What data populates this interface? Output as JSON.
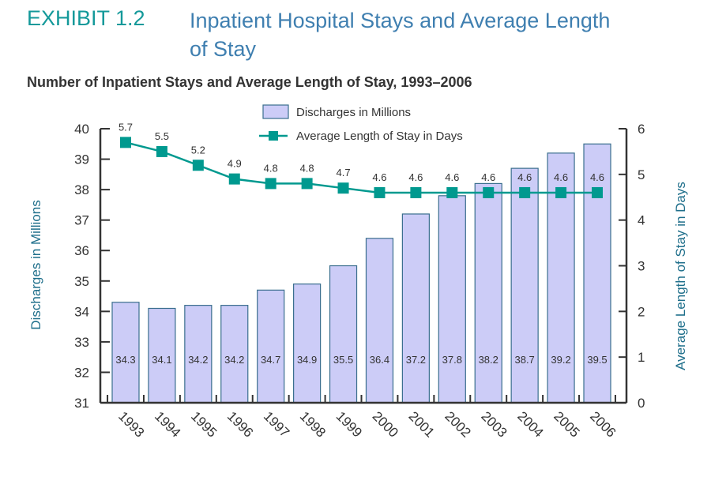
{
  "header": {
    "exhibit": "EXHIBIT 1.2",
    "title": "Inpatient Hospital Stays and Average Length of Stay"
  },
  "chart_data": {
    "type": "bar+line",
    "title": "Number of Inpatient Stays and Average Length of Stay, 1993–2006",
    "categories": [
      "1993",
      "1994",
      "1995",
      "1996",
      "1997",
      "1998",
      "1999",
      "2000",
      "2001",
      "2002",
      "2003",
      "2004",
      "2005",
      "2006"
    ],
    "series": [
      {
        "name": "Discharges in Millions",
        "type": "bar",
        "axis": "left",
        "values": [
          34.3,
          34.1,
          34.2,
          34.2,
          34.7,
          34.9,
          35.5,
          36.4,
          37.2,
          37.8,
          38.2,
          38.7,
          39.2,
          39.5
        ],
        "labels": [
          "34.3",
          "34.1",
          "34.2",
          "34.2",
          "34.7",
          "34.9",
          "35.5",
          "36.4",
          "37.2",
          "37.8",
          "38.2",
          "38.7",
          "39.2",
          "39.5"
        ]
      },
      {
        "name": "Average Length of Stay in Days",
        "type": "line",
        "axis": "right",
        "values": [
          5.7,
          5.5,
          5.2,
          4.9,
          4.8,
          4.8,
          4.7,
          4.6,
          4.6,
          4.6,
          4.6,
          4.6,
          4.6,
          4.6
        ],
        "labels": [
          "5.7",
          "5.5",
          "5.2",
          "4.9",
          "4.8",
          "4.8",
          "4.7",
          "4.6",
          "4.6",
          "4.6",
          "4.6",
          "4.6",
          "4.6",
          "4.6"
        ]
      }
    ],
    "ylabel_left": "Discharges in Millions",
    "ylabel_right": "Average Length of Stay in Days",
    "ylim_left": [
      31,
      40
    ],
    "ylim_right": [
      0,
      6
    ],
    "yticks_left": [
      "31",
      "32",
      "33",
      "34",
      "35",
      "36",
      "37",
      "38",
      "39",
      "40"
    ],
    "yticks_right": [
      "0",
      "1",
      "2",
      "3",
      "4",
      "5",
      "6"
    ],
    "legend_placement": "top-center",
    "grid": false,
    "colors": {
      "bar_fill": "#ccccf7",
      "bar_stroke": "#3a6e8e",
      "line": "#00998f",
      "axis_label": "#1f6f8b"
    }
  }
}
